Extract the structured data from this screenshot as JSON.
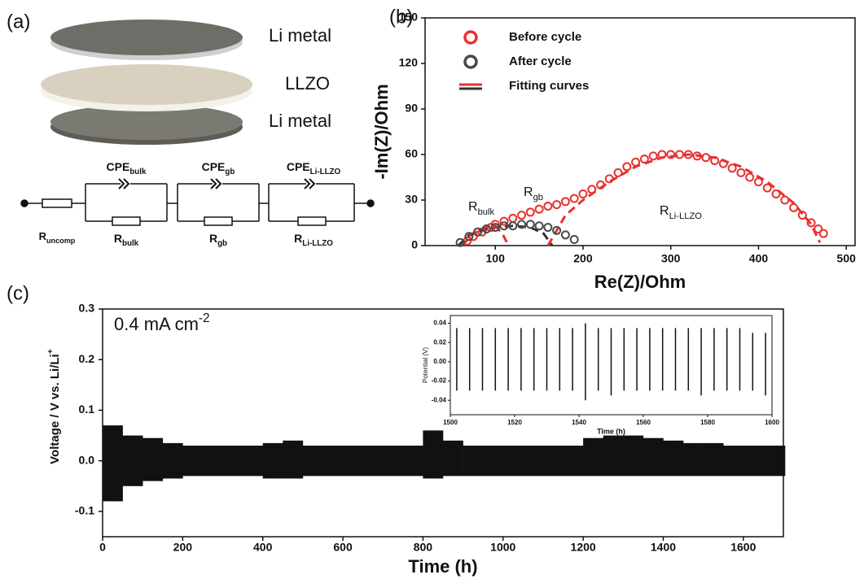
{
  "panel_labels": [
    "(a)",
    "(b)",
    "(c)"
  ],
  "diagram": {
    "layers": [
      "Li metal",
      "LLZO",
      "Li metal"
    ],
    "r_uncomp": {
      "base": "R",
      "sub": "uncomp"
    },
    "elements": [
      {
        "cpe": {
          "base": "CPE",
          "sub": "bulk"
        },
        "r": {
          "base": "R",
          "sub": "bulk"
        }
      },
      {
        "cpe": {
          "base": "CPE",
          "sub": "gb"
        },
        "r": {
          "base": "R",
          "sub": "gb"
        }
      },
      {
        "cpe": {
          "base": "CPE",
          "sub": "Li-LLZO"
        },
        "r": {
          "base": "R",
          "sub": "Li-LLZO"
        }
      }
    ]
  },
  "chart_data": [
    {
      "type": "scatter",
      "x_label": "Re(Z)/Ohm",
      "y_label": "-Im(Z)/Ohm",
      "xlim": [
        20,
        510
      ],
      "ylim": [
        0,
        150
      ],
      "xticks": [
        100,
        200,
        300,
        400,
        500
      ],
      "yticks": [
        0,
        30,
        60,
        90,
        120,
        150
      ],
      "legend": "upper left",
      "series": [
        {
          "name": "Before cycle",
          "color": "#e8312f",
          "x": [
            68,
            75,
            85,
            95,
            100,
            110,
            120,
            130,
            140,
            150,
            160,
            170,
            180,
            190,
            200,
            210,
            220,
            230,
            240,
            250,
            260,
            270,
            280,
            290,
            300,
            310,
            320,
            330,
            340,
            350,
            360,
            370,
            380,
            390,
            400,
            410,
            420,
            430,
            440,
            450,
            460,
            468,
            474
          ],
          "values": [
            3,
            6,
            9,
            12,
            14,
            16,
            18,
            20,
            22,
            24,
            26,
            27,
            29,
            31,
            34,
            37,
            40,
            44,
            48,
            52,
            55,
            57,
            59,
            60,
            60,
            60,
            60,
            59,
            58,
            56,
            54,
            51,
            48,
            45,
            42,
            38,
            34,
            30,
            25,
            20,
            15,
            11,
            8
          ]
        },
        {
          "name": "After cycle",
          "color": "#4a4a4a",
          "x": [
            60,
            70,
            80,
            90,
            100,
            110,
            120,
            130,
            140,
            150,
            160,
            170,
            180,
            190
          ],
          "values": [
            2,
            6,
            9,
            11,
            12,
            13,
            13,
            14,
            14,
            13,
            12,
            10,
            7,
            4
          ]
        }
      ],
      "fit": {
        "name": "Fitting curves",
        "series": [
          {
            "color": "#e8312f",
            "x": [
              62,
              75,
              90,
              100,
              108,
              115,
              null,
              160,
              180,
              200,
              230,
              260,
              290,
              320,
              350,
              380,
              410,
              440,
              460,
              470
            ],
            "values": [
              0,
              8,
              12,
              13,
              8,
              0,
              null,
              0,
              20,
              30,
              42,
              52,
              58,
              60,
              58,
              52,
              42,
              28,
              14,
              2
            ]
          },
          {
            "color": "#333333",
            "x": [
              58,
              70,
              85,
              100,
              120,
              140,
              155,
              165
            ],
            "values": [
              0,
              7,
              10,
              12,
              13,
              12,
              8,
              0
            ]
          }
        ]
      },
      "annotations": [
        {
          "base": "R",
          "sub": "bulk"
        },
        {
          "base": "R",
          "sub": "gb"
        },
        {
          "base": "R",
          "sub": "Li-LLZO"
        }
      ]
    },
    {
      "type": "band",
      "x_label": "Time (h)",
      "y_label": {
        "base": "Voltage / V vs. Li/Li",
        "sup": "+"
      },
      "annotation": {
        "base": "0.4 mA cm",
        "sup": "-2"
      },
      "xlim": [
        0,
        1700
      ],
      "ylim": [
        -0.15,
        0.3
      ],
      "xticks": [
        0,
        200,
        400,
        600,
        800,
        1000,
        1200,
        1400,
        1600
      ],
      "yticks": [
        -0.1,
        {
          "value": 0,
          "label": "0.0"
        },
        0.1,
        0.2,
        0.3
      ],
      "x": [
        0,
        50,
        100,
        150,
        200,
        250,
        300,
        350,
        400,
        450,
        500,
        550,
        600,
        650,
        700,
        750,
        800,
        850,
        900,
        950,
        1000,
        1050,
        1100,
        1150,
        1200,
        1250,
        1300,
        1350,
        1400,
        1450,
        1500,
        1550,
        1600,
        1650,
        1700
      ],
      "series": [
        {
          "color": "#111111",
          "values": [
            0.07,
            0.05,
            0.045,
            0.035,
            0.03,
            0.03,
            0.03,
            0.03,
            0.035,
            0.04,
            0.03,
            0.03,
            0.03,
            0.03,
            0.03,
            0.03,
            0.06,
            0.04,
            0.03,
            0.03,
            0.03,
            0.03,
            0.03,
            0.03,
            0.045,
            0.05,
            0.05,
            0.045,
            0.04,
            0.035,
            0.035,
            0.03,
            0.03,
            0.03,
            0.03
          ]
        },
        {
          "color": "#111111",
          "values": [
            -0.08,
            -0.05,
            -0.04,
            -0.035,
            -0.03,
            -0.03,
            -0.03,
            -0.03,
            -0.035,
            -0.035,
            -0.03,
            -0.03,
            -0.03,
            -0.03,
            -0.03,
            -0.03,
            -0.035,
            -0.03,
            -0.03,
            -0.03,
            -0.03,
            -0.03,
            -0.03,
            -0.03,
            -0.03,
            -0.03,
            -0.03,
            -0.03,
            -0.03,
            -0.03,
            -0.03,
            -0.03,
            -0.03,
            -0.03,
            -0.03
          ]
        }
      ],
      "inset": {
        "x_label": "Time (h)",
        "y_label": "Potential (V)",
        "xlim": [
          1500,
          1600
        ],
        "ylim": [
          -0.055,
          0.048
        ],
        "xticks": [
          1500,
          1520,
          1540,
          1560,
          1580,
          1600
        ],
        "yticks": [
          -0.04,
          -0.02,
          {
            "value": 0,
            "label": "0.00"
          },
          0.02,
          0.04
        ],
        "x": [
          1502,
          1506,
          1510,
          1514,
          1518,
          1522,
          1526,
          1530,
          1534,
          1538,
          1542,
          1546,
          1550,
          1554,
          1558,
          1562,
          1566,
          1570,
          1574,
          1578,
          1582,
          1586,
          1590,
          1594,
          1598
        ],
        "series": [
          {
            "color": "#111111",
            "values": [
              0.035,
              0.035,
              0.035,
              0.035,
              0.035,
              0.035,
              0.035,
              0.035,
              0.035,
              0.035,
              0.04,
              0.035,
              0.035,
              0.035,
              0.035,
              0.035,
              0.035,
              0.035,
              0.035,
              0.035,
              0.035,
              0.035,
              0.035,
              0.03,
              0.03
            ]
          },
          {
            "color": "#111111",
            "values": [
              -0.03,
              -0.03,
              -0.03,
              -0.03,
              -0.03,
              -0.03,
              -0.03,
              -0.03,
              -0.03,
              -0.03,
              -0.04,
              -0.03,
              -0.035,
              -0.03,
              -0.03,
              -0.03,
              -0.03,
              -0.03,
              -0.03,
              -0.035,
              -0.03,
              -0.03,
              -0.03,
              -0.03,
              -0.035
            ]
          }
        ]
      }
    }
  ]
}
